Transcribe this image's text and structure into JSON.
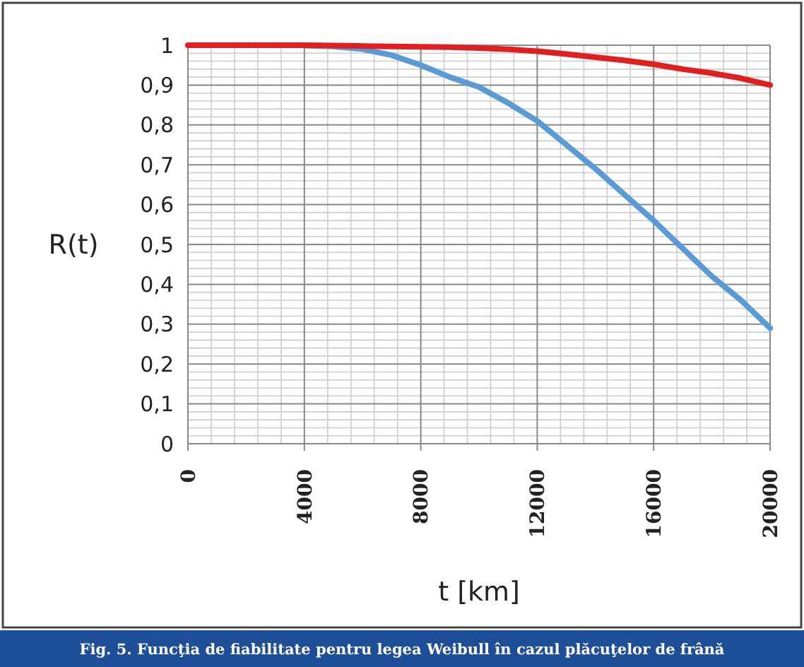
{
  "chart_data": {
    "type": "line",
    "xlabel": "t [km]",
    "ylabel": "R(t)",
    "annotations": [
      "Fig. 5. Funcţia de fiabilitate pentru legea Weibull în cazul plăcuţelor de frână"
    ],
    "x": [
      0,
      1000,
      2000,
      3000,
      4000,
      5000,
      6000,
      7000,
      8000,
      9000,
      10000,
      11000,
      12000,
      13000,
      14000,
      15000,
      16000,
      17000,
      18000,
      19000,
      20000
    ],
    "series": [
      {
        "color": "#5b9bd5",
        "values": [
          null,
          null,
          null,
          null,
          0.999,
          0.997,
          0.99,
          0.975,
          0.95,
          0.92,
          0.895,
          0.855,
          0.81,
          0.75,
          0.69,
          0.625,
          0.56,
          0.49,
          0.42,
          0.36,
          0.29
        ]
      },
      {
        "color": "#e02020",
        "values": [
          1,
          1,
          1,
          1,
          1,
          0.999,
          0.998,
          0.997,
          0.996,
          0.995,
          0.993,
          0.99,
          0.985,
          0.978,
          0.97,
          0.962,
          0.952,
          0.94,
          0.93,
          0.917,
          0.9
        ]
      }
    ],
    "xlim": [
      0,
      20000
    ],
    "xticks": [
      0,
      4000,
      8000,
      12000,
      16000,
      20000
    ],
    "ylim": [
      0,
      1
    ],
    "yticks": [
      {
        "value": 0,
        "label": "0"
      },
      {
        "value": 0.1,
        "label": "0,1"
      },
      {
        "value": 0.2,
        "label": "0,2"
      },
      {
        "value": 0.3,
        "label": "0,3"
      },
      {
        "value": 0.4,
        "label": "0,4"
      },
      {
        "value": 0.5,
        "label": "0,5"
      },
      {
        "value": 0.6,
        "label": "0,6"
      },
      {
        "value": 0.7,
        "label": "0,7"
      },
      {
        "value": 0.8,
        "label": "0,8"
      },
      {
        "value": 0.9,
        "label": "0,9"
      },
      {
        "value": 1,
        "label": "1"
      }
    ],
    "grid": true,
    "marker": "none",
    "line_style": "solid"
  }
}
